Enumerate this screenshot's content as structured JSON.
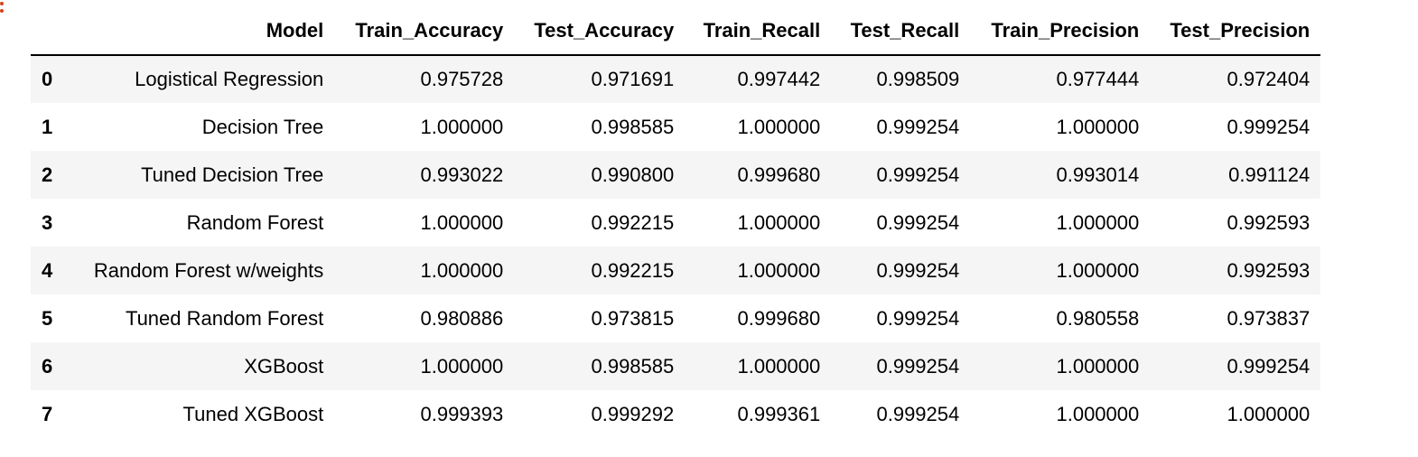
{
  "table": {
    "columns": [
      "Model",
      "Train_Accuracy",
      "Test_Accuracy",
      "Train_Recall",
      "Test_Recall",
      "Train_Precision",
      "Test_Precision"
    ],
    "rows": [
      {
        "index": "0",
        "cells": [
          "Logistical Regression",
          "0.975728",
          "0.971691",
          "0.997442",
          "0.998509",
          "0.977444",
          "0.972404"
        ]
      },
      {
        "index": "1",
        "cells": [
          "Decision Tree",
          "1.000000",
          "0.998585",
          "1.000000",
          "0.999254",
          "1.000000",
          "0.999254"
        ]
      },
      {
        "index": "2",
        "cells": [
          "Tuned Decision Tree",
          "0.993022",
          "0.990800",
          "0.999680",
          "0.999254",
          "0.993014",
          "0.991124"
        ]
      },
      {
        "index": "3",
        "cells": [
          "Random Forest",
          "1.000000",
          "0.992215",
          "1.000000",
          "0.999254",
          "1.000000",
          "0.992593"
        ]
      },
      {
        "index": "4",
        "cells": [
          "Random Forest w/weights",
          "1.000000",
          "0.992215",
          "1.000000",
          "0.999254",
          "1.000000",
          "0.992593"
        ]
      },
      {
        "index": "5",
        "cells": [
          "Tuned Random Forest",
          "0.980886",
          "0.973815",
          "0.999680",
          "0.999254",
          "0.980558",
          "0.973837"
        ]
      },
      {
        "index": "6",
        "cells": [
          "XGBoost",
          "1.000000",
          "0.998585",
          "1.000000",
          "0.999254",
          "1.000000",
          "0.999254"
        ]
      },
      {
        "index": "7",
        "cells": [
          "Tuned XGBoost",
          "0.999393",
          "0.999292",
          "0.999361",
          "0.999254",
          "1.000000",
          "1.000000"
        ]
      }
    ]
  },
  "colors": {
    "prompt_marker": "#d84315",
    "stripe": "#f5f5f5"
  }
}
